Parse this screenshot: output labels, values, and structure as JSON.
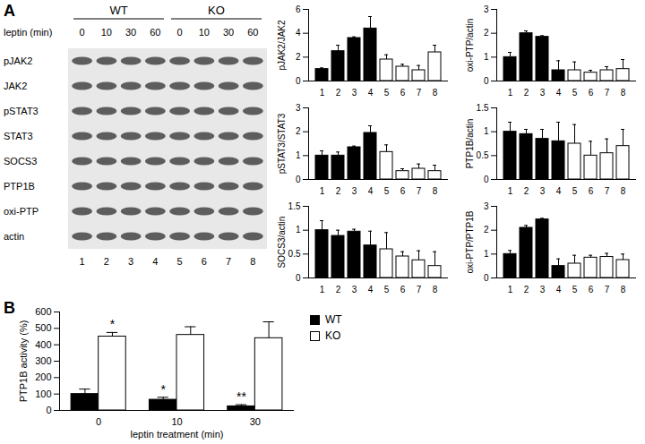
{
  "panel_labels": [
    "A",
    "B"
  ],
  "blot": {
    "groups": [
      "WT",
      "KO"
    ],
    "treatment_label": "leptin (min)",
    "lane_times": [
      0,
      10,
      30,
      60,
      0,
      10,
      30,
      60
    ],
    "rows": [
      "pJAK2",
      "JAK2",
      "pSTAT3",
      "STAT3",
      "SOCS3",
      "PTP1B",
      "oxi-PTP",
      "actin"
    ],
    "lanes": [
      1,
      2,
      3,
      4,
      5,
      6,
      7,
      8
    ]
  },
  "chart_data": [
    {
      "type": "bar",
      "ylabel": "pJAK2/JAK2",
      "categories": [
        1,
        2,
        3,
        4,
        5,
        6,
        7,
        8
      ],
      "values": [
        1,
        2.5,
        3.6,
        4.4,
        1.8,
        1.2,
        0.9,
        2.4
      ],
      "errors": [
        0.1,
        0.5,
        0.1,
        1.0,
        0.4,
        0.2,
        0.4,
        0.6
      ],
      "colors": [
        "#000000",
        "#000000",
        "#000000",
        "#000000",
        "#ffffff",
        "#ffffff",
        "#ffffff",
        "#ffffff"
      ],
      "ylim": [
        0,
        6
      ],
      "yticks": [
        0,
        2,
        4,
        6
      ]
    },
    {
      "type": "bar",
      "ylabel": "oxi-PTP/actin",
      "categories": [
        1,
        2,
        3,
        4,
        5,
        6,
        7,
        8
      ],
      "values": [
        1,
        2.0,
        1.85,
        0.45,
        0.45,
        0.35,
        0.45,
        0.5
      ],
      "errors": [
        0.2,
        0.1,
        0.05,
        0.4,
        0.35,
        0.1,
        0.15,
        0.4
      ],
      "colors": [
        "#000000",
        "#000000",
        "#000000",
        "#000000",
        "#ffffff",
        "#ffffff",
        "#ffffff",
        "#ffffff"
      ],
      "ylim": [
        0,
        3
      ],
      "yticks": [
        0,
        1,
        2,
        3
      ]
    },
    {
      "type": "bar",
      "ylabel": "pSTAT3/STAT3",
      "categories": [
        1,
        2,
        3,
        4,
        5,
        6,
        7,
        8
      ],
      "values": [
        1,
        1,
        1.35,
        1.95,
        1.15,
        0.35,
        0.45,
        0.35
      ],
      "errors": [
        0.2,
        0.15,
        0.05,
        0.3,
        0.3,
        0.1,
        0.2,
        0.25
      ],
      "colors": [
        "#000000",
        "#000000",
        "#000000",
        "#000000",
        "#ffffff",
        "#ffffff",
        "#ffffff",
        "#ffffff"
      ],
      "ylim": [
        0,
        3
      ],
      "yticks": [
        0,
        1,
        2,
        3
      ]
    },
    {
      "type": "bar",
      "ylabel": "PTP1B/actin",
      "categories": [
        1,
        2,
        3,
        4,
        5,
        6,
        7,
        8
      ],
      "values": [
        1.0,
        0.95,
        0.85,
        0.8,
        0.75,
        0.5,
        0.55,
        0.7
      ],
      "errors": [
        0.2,
        0.1,
        0.2,
        0.4,
        0.4,
        0.3,
        0.3,
        0.35
      ],
      "colors": [
        "#000000",
        "#000000",
        "#000000",
        "#000000",
        "#ffffff",
        "#ffffff",
        "#ffffff",
        "#ffffff"
      ],
      "ylim": [
        0,
        1.5
      ],
      "yticks": [
        0,
        0.5,
        1,
        1.5
      ]
    },
    {
      "type": "bar",
      "ylabel": "SOCS3/actin",
      "categories": [
        1,
        2,
        3,
        4,
        5,
        6,
        7,
        8
      ],
      "values": [
        1,
        0.88,
        0.97,
        0.68,
        0.6,
        0.45,
        0.37,
        0.25
      ],
      "errors": [
        0.2,
        0.12,
        0.05,
        0.3,
        0.35,
        0.1,
        0.2,
        0.3
      ],
      "colors": [
        "#000000",
        "#000000",
        "#000000",
        "#000000",
        "#ffffff",
        "#ffffff",
        "#ffffff",
        "#ffffff"
      ],
      "ylim": [
        0,
        1.5
      ],
      "yticks": [
        0,
        0.5,
        1,
        1.5
      ]
    },
    {
      "type": "bar",
      "ylabel": "oxi-PTP/PTP1B",
      "categories": [
        1,
        2,
        3,
        4,
        5,
        6,
        7,
        8
      ],
      "values": [
        1,
        2.1,
        2.45,
        0.5,
        0.6,
        0.85,
        0.88,
        0.75
      ],
      "errors": [
        0.15,
        0.1,
        0.05,
        0.3,
        0.35,
        0.1,
        0.15,
        0.25
      ],
      "colors": [
        "#000000",
        "#000000",
        "#000000",
        "#000000",
        "#ffffff",
        "#ffffff",
        "#ffffff",
        "#ffffff"
      ],
      "ylim": [
        0,
        3
      ],
      "yticks": [
        0,
        1,
        2,
        3
      ]
    },
    {
      "type": "bar",
      "ylabel": "PTP1B activity (%)",
      "xlabel": "leptin treatment (min)",
      "categories": [
        0,
        10,
        30
      ],
      "series": [
        {
          "name": "WT",
          "color": "#000000",
          "values": [
            100,
            65,
            25
          ],
          "errors": [
            30,
            15,
            10
          ]
        },
        {
          "name": "KO",
          "color": "#ffffff",
          "values": [
            450,
            460,
            440
          ],
          "errors": [
            25,
            50,
            100
          ]
        }
      ],
      "annotations": [
        {
          "category": 0,
          "series": "KO",
          "text": "*"
        },
        {
          "category": 10,
          "series": "WT",
          "text": "*"
        },
        {
          "category": 30,
          "series": "WT",
          "text": "**"
        }
      ],
      "ylim": [
        0,
        600
      ],
      "yticks": [
        0,
        100,
        200,
        300,
        400,
        500,
        600
      ],
      "legend": "right"
    }
  ]
}
